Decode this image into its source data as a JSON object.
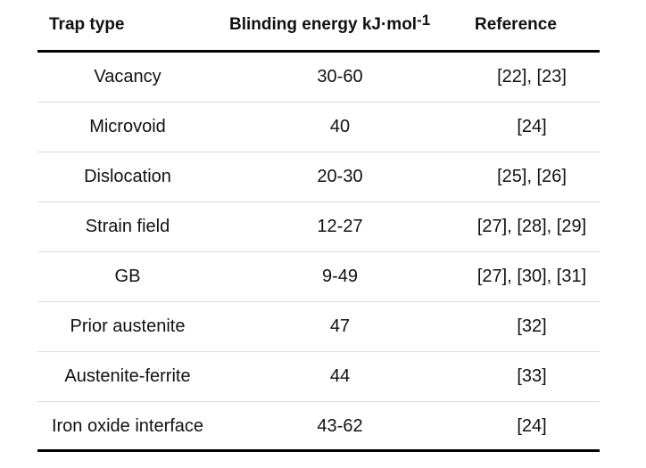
{
  "table": {
    "headers": {
      "trap_type": "Trap type",
      "binding_energy": "Blinding energy kJ·mol",
      "binding_energy_sup": "-1",
      "reference": "Reference"
    },
    "rows": [
      {
        "trap": "Vacancy",
        "energy": "30-60",
        "ref": "[22], [23]"
      },
      {
        "trap": "Microvoid",
        "energy": "40",
        "ref": "[24]"
      },
      {
        "trap": "Dislocation",
        "energy": "20-30",
        "ref": "[25], [26]"
      },
      {
        "trap": "Strain field",
        "energy": "12-27",
        "ref": "[27], [28], [29]"
      },
      {
        "trap": "GB",
        "energy": "9-49",
        "ref": "[27], [30], [31]"
      },
      {
        "trap": "Prior austenite",
        "energy": "47",
        "ref": "[32]"
      },
      {
        "trap": "Austenite-ferrite",
        "energy": "44",
        "ref": "[33]"
      },
      {
        "trap": "Iron oxide interface",
        "energy": "43-62",
        "ref": "[24]"
      }
    ]
  }
}
